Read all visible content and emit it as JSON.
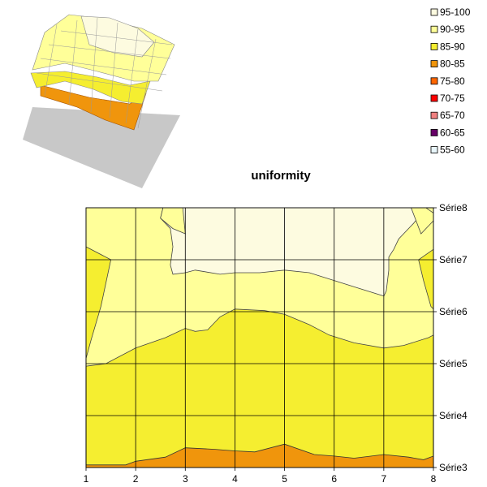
{
  "chart_data": {
    "type": "contour",
    "title": "uniformity",
    "x": [
      1,
      2,
      3,
      4,
      5,
      6,
      7,
      8
    ],
    "y_categories": [
      "Série3",
      "Série4",
      "Série5",
      "Série6",
      "Série7",
      "Série8"
    ],
    "legend": [
      {
        "label": "95-100",
        "color": "#fdfbe0"
      },
      {
        "label": "90-95",
        "color": "#ffff99"
      },
      {
        "label": "85-90",
        "color": "#f5ee30"
      },
      {
        "label": "80-85",
        "color": "#f0950c"
      },
      {
        "label": "75-80",
        "color": "#ff6600"
      },
      {
        "label": "70-75",
        "color": "#ff0000"
      },
      {
        "label": "65-70",
        "color": "#f08080"
      },
      {
        "label": "60-65",
        "color": "#660066"
      },
      {
        "label": "55-60",
        "color": "#e8f6fb"
      }
    ],
    "grid": true,
    "legend_position": "top-right",
    "has_3d_preview": true
  }
}
